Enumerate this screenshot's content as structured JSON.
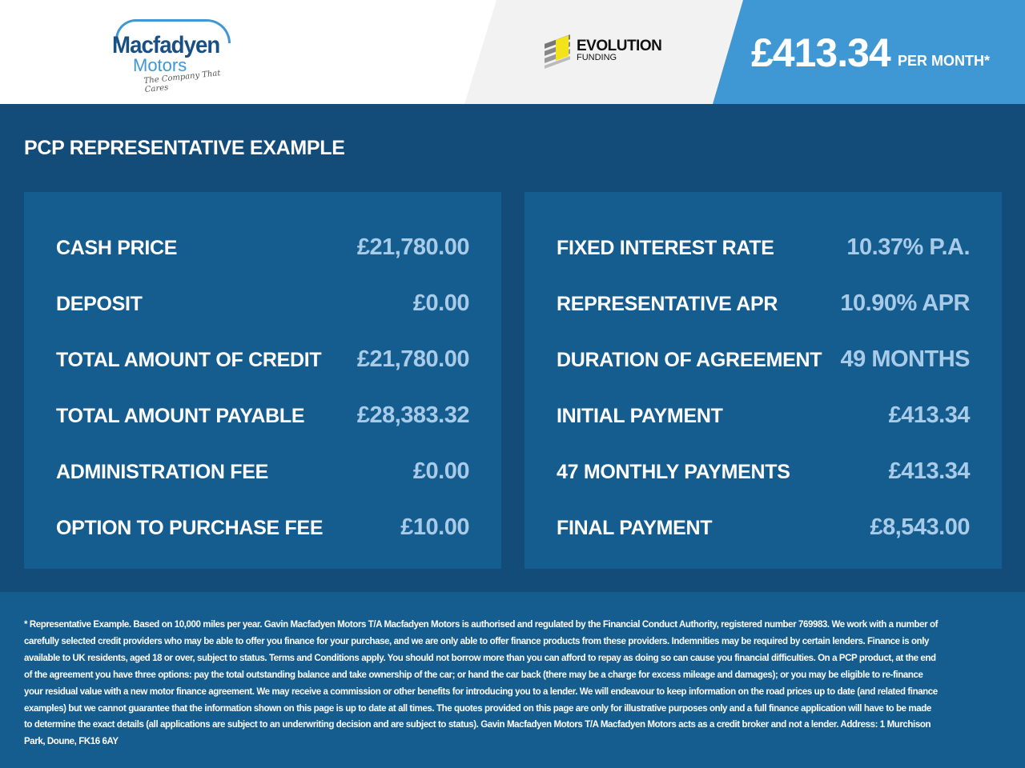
{
  "header": {
    "logo": {
      "line1": "Macfadyen",
      "line2": "Motors",
      "tagline": "The Company That Cares"
    },
    "partner": {
      "name": "EVOLUTION",
      "sub": "FUNDING"
    },
    "monthly_price": "£413.34",
    "per_month_label": "PER MONTH*",
    "colors": {
      "brand_blue": "#3f97d3",
      "dark_blue": "#134c79",
      "panel_blue": "#155c8f",
      "value_blue": "#a8cbe8"
    }
  },
  "section_title": "PCP REPRESENTATIVE EXAMPLE",
  "left_panel": [
    {
      "label": "CASH PRICE",
      "value": "£21,780.00"
    },
    {
      "label": "DEPOSIT",
      "value": "£0.00"
    },
    {
      "label": "TOTAL AMOUNT OF CREDIT",
      "value": "£21,780.00"
    },
    {
      "label": "TOTAL AMOUNT PAYABLE",
      "value": "£28,383.32"
    },
    {
      "label": "ADMINISTRATION FEE",
      "value": "£0.00"
    },
    {
      "label": "OPTION TO PURCHASE FEE",
      "value": "£10.00"
    }
  ],
  "right_panel": [
    {
      "label": "FIXED INTEREST RATE",
      "value": "10.37% P.A."
    },
    {
      "label": "REPRESENTATIVE APR",
      "value": "10.90% APR"
    },
    {
      "label": "DURATION OF AGREEMENT",
      "value": "49 MONTHS"
    },
    {
      "label": "INITIAL PAYMENT",
      "value": "£413.34"
    },
    {
      "label": "47 MONTHLY PAYMENTS",
      "value": "£413.34"
    },
    {
      "label": "FINAL PAYMENT",
      "value": "£8,543.00"
    }
  ],
  "disclaimer": "* Representative Example. Based on 10,000 miles per year. Gavin Macfadyen Motors T/A Macfadyen Motors is authorised and regulated by the Financial Conduct Authority, registered number 769983. We work with a number of carefully selected credit providers who may be able to offer you finance for your purchase, and we are only able to offer finance products from these providers. Indemnities may be required by certain lenders. Finance is only available to UK residents, aged 18 or over, subject to status. Terms and Conditions apply. You should not borrow more than you can afford to repay as doing so can cause you financial difficulties. On a PCP product, at the end of the agreement you have three options: pay the total outstanding balance and take ownership of the car; or hand the car back (there may be a charge for excess mileage and damages); or you may be eligible to re-finance your residual value with a new motor finance agreement. We may receive a commission or other benefits for introducing you to a lender. We will endeavour to keep information on the road prices up to date (and related finance examples) but we cannot guarantee that the information shown on this page is up to date at all times. The quotes provided on this page are only for illustrative purposes only and a full finance application will have to be made to determine the exact details (all applications are subject to an underwriting decision and are subject to status). Gavin Macfadyen Motors T/A Macfadyen Motors acts as a credit broker and not a lender. Address: 1 Murchison Park, Doune, FK16 6AY"
}
